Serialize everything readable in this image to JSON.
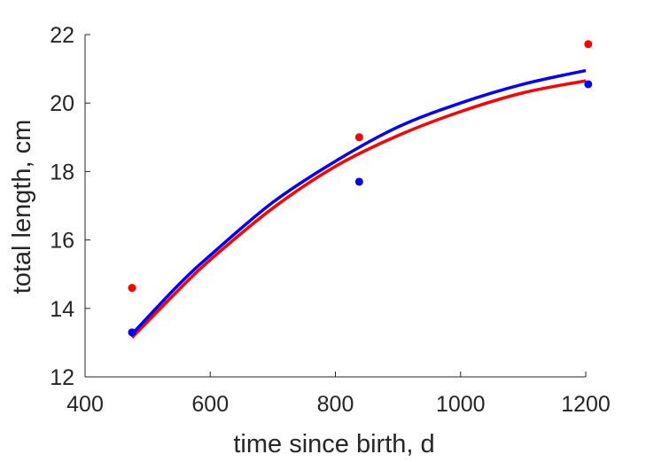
{
  "chart_data": {
    "type": "line",
    "title": "",
    "xlabel": "time since birth, d",
    "ylabel": "total length, cm",
    "xlim": [
      400,
      1200
    ],
    "ylim": [
      12,
      22
    ],
    "xticks": [
      400,
      600,
      800,
      1000,
      1200
    ],
    "yticks": [
      12,
      14,
      16,
      18,
      20,
      22
    ],
    "grid": false,
    "series": [
      {
        "color": "#ff0000",
        "points": {
          "x": [
            475,
            838,
            1204
          ],
          "y": [
            14.6,
            19.0,
            21.72
          ]
        },
        "curve": {
          "x": [
            475,
            550,
            600,
            700,
            800,
            900,
            1000,
            1100,
            1200
          ],
          "y": [
            13.15,
            14.55,
            15.42,
            16.93,
            18.15,
            19.05,
            19.75,
            20.3,
            20.65
          ]
        }
      },
      {
        "color": "#0000ff",
        "points": {
          "x": [
            475,
            838,
            1204
          ],
          "y": [
            13.3,
            17.7,
            20.55
          ]
        },
        "curve": {
          "x": [
            475,
            550,
            600,
            700,
            800,
            900,
            1000,
            1100,
            1200
          ],
          "y": [
            13.25,
            14.7,
            15.55,
            17.1,
            18.3,
            19.3,
            20.0,
            20.55,
            20.95
          ]
        }
      }
    ]
  }
}
